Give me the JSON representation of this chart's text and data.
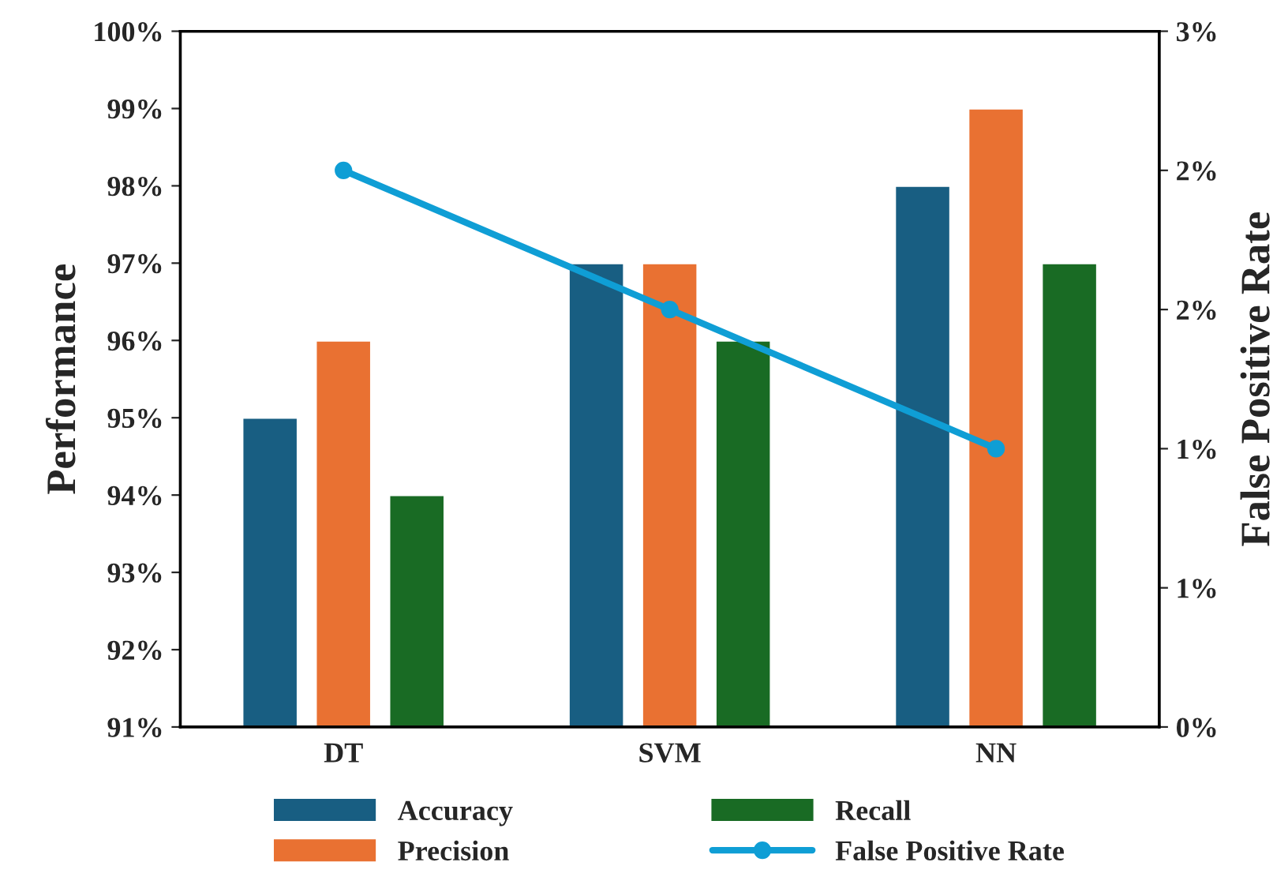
{
  "chart_data": {
    "type": "bar",
    "ylabel": "Performance",
    "y2label": "False Positive Rate",
    "categories": [
      "DT",
      "SVM",
      "NN"
    ],
    "series": [
      {
        "name": "Accuracy",
        "color": "#185e82",
        "values": [
          95,
          97,
          98
        ]
      },
      {
        "name": "Precision",
        "color": "#e97132",
        "values": [
          96,
          97,
          99
        ]
      },
      {
        "name": "Recall",
        "color": "#196b24",
        "values": [
          94,
          96,
          97
        ]
      },
      {
        "name": "False Positive Rate",
        "type": "line",
        "axis": "y2",
        "color": "#0f9ed5",
        "values": [
          2.4,
          1.8,
          1.2
        ],
        "marker": "circle"
      }
    ],
    "ylim": [
      91,
      100
    ],
    "yticks": [
      {
        "value": 91,
        "label": "91%"
      },
      {
        "value": 92,
        "label": "92%"
      },
      {
        "value": 93,
        "label": "93%"
      },
      {
        "value": 94,
        "label": "94%"
      },
      {
        "value": 95,
        "label": "95%"
      },
      {
        "value": 96,
        "label": "96%"
      },
      {
        "value": 97,
        "label": "97%"
      },
      {
        "value": 98,
        "label": "98%"
      },
      {
        "value": 99,
        "label": "99%"
      },
      {
        "value": 100,
        "label": "100%"
      }
    ],
    "y2lim": [
      0,
      3
    ],
    "y2ticks": [
      {
        "value": 0,
        "label": "0%"
      },
      {
        "value": 0.6,
        "label": "1%"
      },
      {
        "value": 1.2,
        "label": "1%"
      },
      {
        "value": 1.8,
        "label": "2%"
      },
      {
        "value": 2.4,
        "label": "2%"
      },
      {
        "value": 3,
        "label": "3%"
      }
    ],
    "grid": false,
    "legend": "bottom",
    "line_style": "solid"
  }
}
